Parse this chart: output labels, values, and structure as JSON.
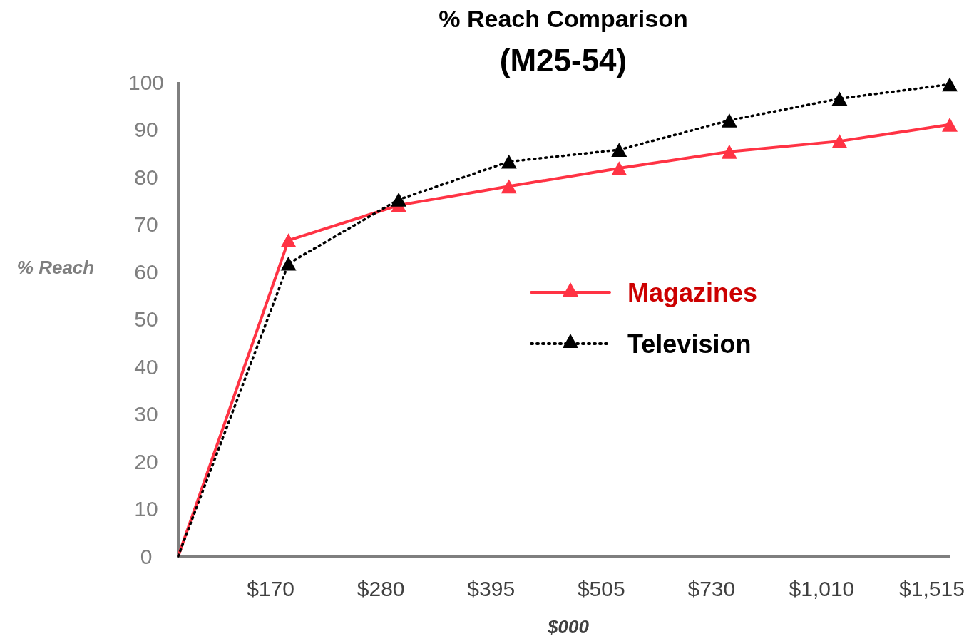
{
  "chart_data": {
    "type": "line",
    "title": "% Reach Comparison",
    "subtitle": "(M25-54)",
    "xlabel": "$000",
    "ylabel": "% Reach",
    "categories": [
      null,
      "$170",
      "$280",
      "$395",
      "$505",
      "$730",
      "$1,010",
      "$1,515"
    ],
    "ylim": [
      0,
      100
    ],
    "yticks": [
      0,
      10,
      20,
      30,
      40,
      50,
      60,
      70,
      80,
      90,
      100
    ],
    "grid": false,
    "legend": "center",
    "marker": "triangle",
    "series": [
      {
        "name": "Magazines",
        "color": "#ff3344",
        "line_style": "solid",
        "values": [
          0,
          66.6,
          74,
          78,
          81.8,
          85.3,
          87.5,
          91
        ]
      },
      {
        "name": "Television",
        "color": "#000000",
        "line_style": "dotted",
        "values": [
          0,
          61.7,
          75.2,
          83.2,
          85.7,
          91.9,
          96.5,
          99.5
        ]
      }
    ]
  }
}
